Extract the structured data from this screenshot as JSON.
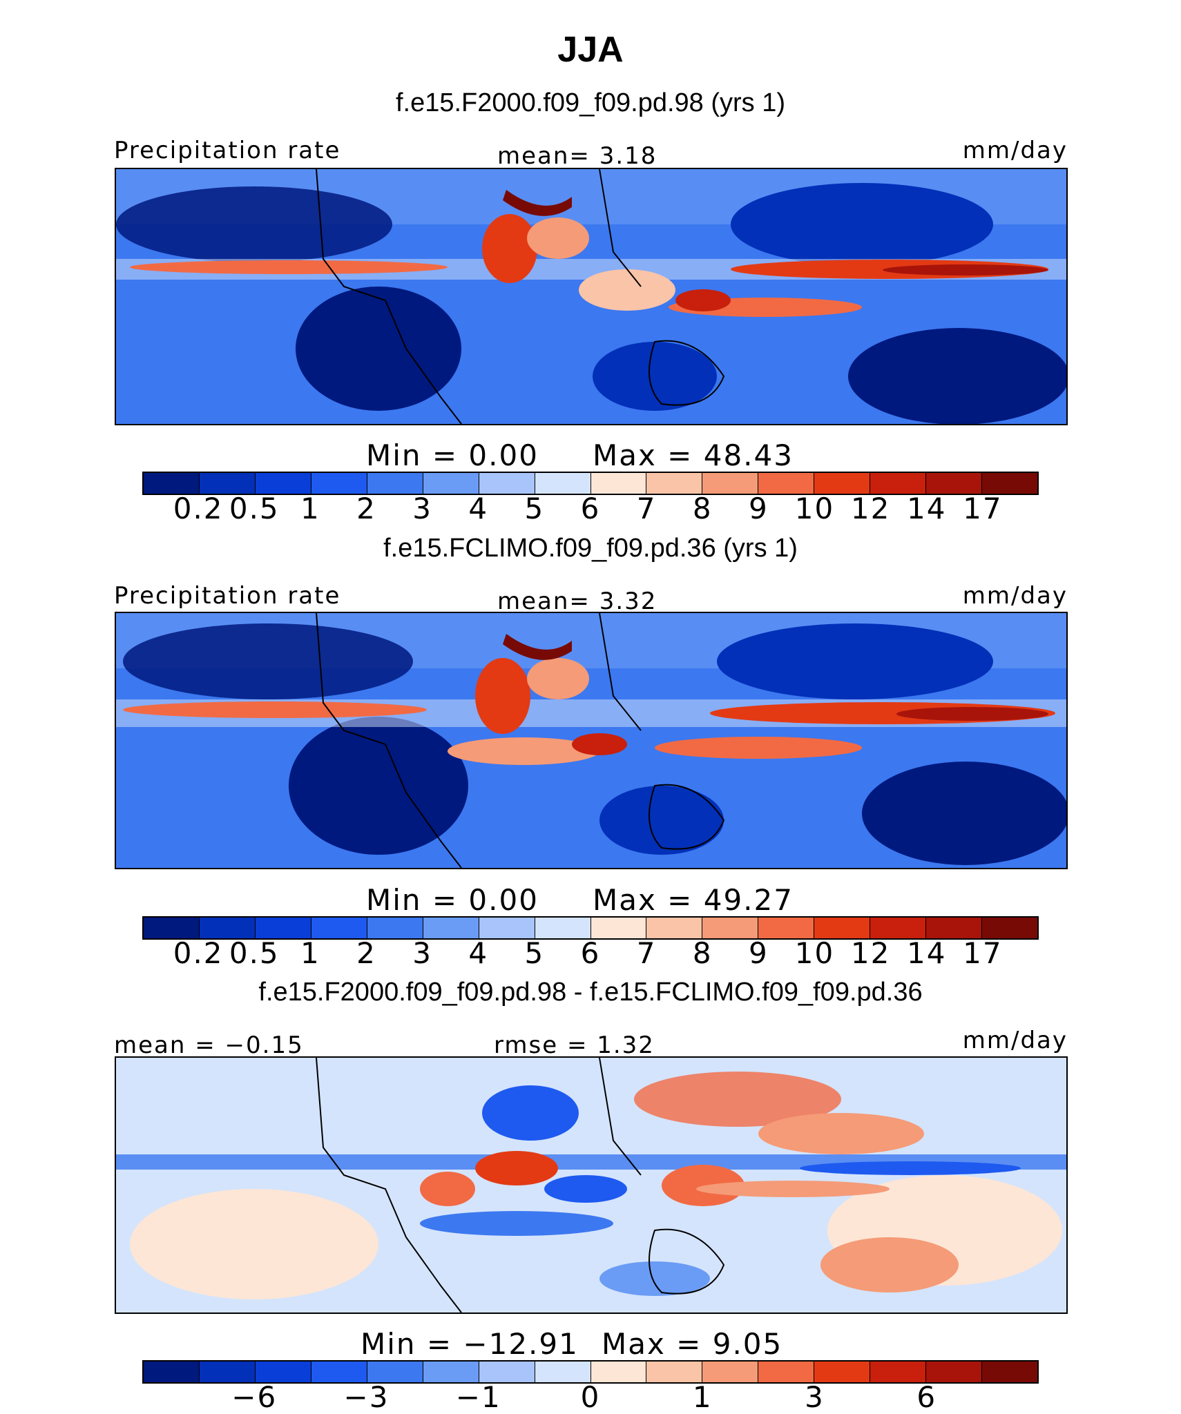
{
  "title": "JJA",
  "colors": {
    "precip": [
      "#00197f",
      "#0230b8",
      "#0a3ed8",
      "#1e5af0",
      "#3c78f0",
      "#6a9cf5",
      "#a8c4fa",
      "#d4e4fc",
      "#fde6d6",
      "#fac4a8",
      "#f59b77",
      "#f26a44",
      "#e33a14",
      "#c8200c",
      "#a8140a",
      "#780a05"
    ],
    "diff": [
      "#00197f",
      "#0230b8",
      "#0a3ed8",
      "#1e5af0",
      "#3c78f0",
      "#6a9cf5",
      "#a8c4fa",
      "#d4e4fc",
      "#fde6d6",
      "#fac4a8",
      "#f59b77",
      "#f26a44",
      "#e33a14",
      "#c8200c",
      "#a8140a",
      "#780a05"
    ]
  },
  "panels": [
    {
      "case": "f.e15.F2000.f09_f09.pd.98 (yrs 1)",
      "left_label": "Precipitation rate",
      "center_label": "mean=    3.18",
      "units": "mm/day",
      "min_label": "Min  =      0.00",
      "max_label": "Max  =    48.43",
      "ticks": [
        "0.2",
        "0.5",
        "1",
        "2",
        "3",
        "4",
        "5",
        "6",
        "7",
        "8",
        "9",
        "10",
        "12",
        "14",
        "17"
      ]
    },
    {
      "case": "f.e15.FCLIMO.f09_f09.pd.36 (yrs 1)",
      "left_label": "Precipitation rate",
      "center_label": "mean=    3.32",
      "units": "mm/day",
      "min_label": "Min  =      0.00",
      "max_label": "Max  =    49.27",
      "ticks": [
        "0.2",
        "0.5",
        "1",
        "2",
        "3",
        "4",
        "5",
        "6",
        "7",
        "8",
        "9",
        "10",
        "12",
        "14",
        "17"
      ]
    },
    {
      "case": "f.e15.F2000.f09_f09.pd.98 - f.e15.FCLIMO.f09_f09.pd.36",
      "left_label": "mean =   −0.15",
      "center_label": "rmse =    1.32",
      "units": "mm/day",
      "min_label": "Min  = −12.91",
      "max_label": "Max  =     9.05",
      "ticks": [
        "−6",
        "−3",
        "−1",
        "0",
        "1",
        "3",
        "6"
      ]
    }
  ],
  "chart_data": [
    {
      "type": "heatmap",
      "title": "f.e15.F2000.f09_f09.pd.98 (yrs 1)",
      "variable": "Precipitation rate",
      "units": "mm/day",
      "mean": 3.18,
      "min": 0.0,
      "max": 48.43,
      "levels": [
        0.2,
        0.5,
        1,
        2,
        3,
        4,
        5,
        6,
        7,
        8,
        9,
        10,
        12,
        14,
        17
      ]
    },
    {
      "type": "heatmap",
      "title": "f.e15.FCLIMO.f09_f09.pd.36 (yrs 1)",
      "variable": "Precipitation rate",
      "units": "mm/day",
      "mean": 3.32,
      "min": 0.0,
      "max": 49.27,
      "levels": [
        0.2,
        0.5,
        1,
        2,
        3,
        4,
        5,
        6,
        7,
        8,
        9,
        10,
        12,
        14,
        17
      ]
    },
    {
      "type": "heatmap",
      "title": "f.e15.F2000.f09_f09.pd.98 - f.e15.FCLIMO.f09_f09.pd.36",
      "units": "mm/day",
      "mean": -0.15,
      "rmse": 1.32,
      "min": -12.91,
      "max": 9.05,
      "levels": [
        -6,
        -3,
        -1,
        0,
        1,
        3,
        6
      ]
    }
  ]
}
